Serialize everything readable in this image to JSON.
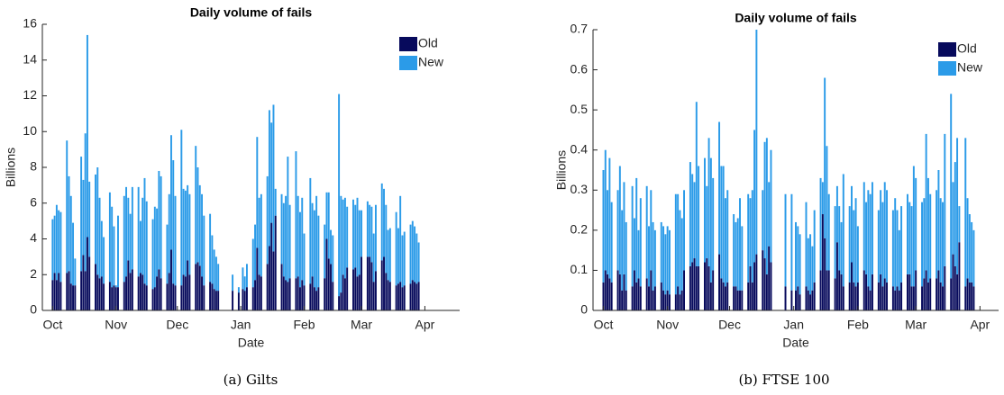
{
  "chart_data": [
    {
      "type": "stacked-bar",
      "title": "Daily volume of fails",
      "x_label": "Date",
      "y_label": "Billions",
      "caption": "(a) Gilts",
      "x": [
        0,
        1,
        2,
        3,
        4,
        7,
        8,
        9,
        10,
        11,
        14,
        15,
        16,
        17,
        18,
        21,
        22,
        23,
        24,
        25,
        28,
        29,
        30,
        31,
        32,
        35,
        36,
        37,
        38,
        39,
        42,
        43,
        44,
        45,
        46,
        49,
        50,
        51,
        52,
        53,
        56,
        57,
        58,
        59,
        60,
        63,
        64,
        65,
        66,
        67,
        70,
        71,
        72,
        73,
        74,
        77,
        78,
        79,
        80,
        81,
        88,
        91,
        93,
        94,
        95,
        98,
        99,
        100,
        101,
        102,
        105,
        106,
        107,
        108,
        109,
        112,
        113,
        114,
        115,
        116,
        119,
        120,
        121,
        122,
        123,
        126,
        127,
        128,
        129,
        130,
        133,
        134,
        135,
        136,
        137,
        140,
        141,
        142,
        143,
        144,
        147,
        148,
        149,
        150,
        151,
        154,
        155,
        156,
        157,
        158,
        161,
        162,
        163,
        164,
        165,
        168,
        169,
        170,
        171,
        172,
        175,
        176,
        177,
        178,
        179
      ],
      "series": [
        {
          "name": "Old",
          "color": "#070a5c",
          "values": [
            1.7,
            2.1,
            1.7,
            2.1,
            1.6,
            2.1,
            2.2,
            1.5,
            1.4,
            1.4,
            2.2,
            3.1,
            2.2,
            4.1,
            3.0,
            2.6,
            2.0,
            1.8,
            1.9,
            1.5,
            1.6,
            1.3,
            1.4,
            1.3,
            1.3,
            1.6,
            1.9,
            2.8,
            2.1,
            2.3,
            1.9,
            2.1,
            2.0,
            1.5,
            1.4,
            1.2,
            1.3,
            1.9,
            2.3,
            1.8,
            1.5,
            2.1,
            3.4,
            1.5,
            1.4,
            1.4,
            2.0,
            1.9,
            2.8,
            2.0,
            2.6,
            2.7,
            2.5,
            1.9,
            1.4,
            1.6,
            1.5,
            1.2,
            1.1,
            1.1,
            1.1,
            1.0,
            1.2,
            1.1,
            1.3,
            1.3,
            1.7,
            3.5,
            2.0,
            1.9,
            2.6,
            3.6,
            4.9,
            3.3,
            5.3,
            2.6,
            1.9,
            1.7,
            1.6,
            1.8,
            1.8,
            1.9,
            1.3,
            1.7,
            1.4,
            1.5,
            1.9,
            1.3,
            1.1,
            1.3,
            1.8,
            4.0,
            2.9,
            2.6,
            1.6,
            0.8,
            1.0,
            2.0,
            1.8,
            2.4,
            2.3,
            2.4,
            1.9,
            2.0,
            3.0,
            3.0,
            3.0,
            2.7,
            1.6,
            2.2,
            2.8,
            3.0,
            2.1,
            1.7,
            1.6,
            1.4,
            1.5,
            1.6,
            1.3,
            1.4,
            1.5,
            1.7,
            1.6,
            1.5,
            1.6
          ]
        },
        {
          "name": "New",
          "color": "#2b9be8",
          "values": [
            3.4,
            3.2,
            4.2,
            3.5,
            3.9,
            7.4,
            5.3,
            4.9,
            3.5,
            1.5,
            6.4,
            4.2,
            7.7,
            11.3,
            4.2,
            5.0,
            6.0,
            4.5,
            3.1,
            2.6,
            5.0,
            4.5,
            3.3,
            0.1,
            4.0,
            4.8,
            5.0,
            3.5,
            3.3,
            4.6,
            5.0,
            2.9,
            4.3,
            5.9,
            4.7,
            3.9,
            4.5,
            3.8,
            5.5,
            5.7,
            3.3,
            4.4,
            6.4,
            6.9,
            5.0,
            8.7,
            4.8,
            4.8,
            4.2,
            4.5,
            6.6,
            5.3,
            4.5,
            4.6,
            3.9,
            3.8,
            2.7,
            2.2,
            1.9,
            1.5,
            0.9,
            0.3,
            1.2,
            0.8,
            1.3,
            2.7,
            3.1,
            6.2,
            4.3,
            4.6,
            4.9,
            7.6,
            5.6,
            8.2,
            1.5,
            3.9,
            4.1,
            4.7,
            7.0,
            4.1,
            7.1,
            4.5,
            4.2,
            4.6,
            2.9,
            5.9,
            4.1,
            4.3,
            5.3,
            4.0,
            3.0,
            2.6,
            3.7,
            1.9,
            2.6,
            11.3,
            5.4,
            4.2,
            4.5,
            3.4,
            3.9,
            3.5,
            4.4,
            3.6,
            2.6,
            3.1,
            2.9,
            3.1,
            2.7,
            3.7,
            4.3,
            3.8,
            3.8,
            2.8,
            3.0,
            4.1,
            3.1,
            4.8,
            2.9,
            3.0,
            3.3,
            3.3,
            3.1,
            2.8,
            2.2
          ]
        }
      ],
      "xlim": [
        -5,
        199
      ],
      "xticks": [
        {
          "value": 0,
          "label": "Oct"
        },
        {
          "value": 31,
          "label": "Nov"
        },
        {
          "value": 61,
          "label": "Dec"
        },
        {
          "value": 92,
          "label": "Jan"
        },
        {
          "value": 123,
          "label": "Feb"
        },
        {
          "value": 151,
          "label": "Mar"
        },
        {
          "value": 182,
          "label": "Apr"
        }
      ],
      "ylim": [
        0,
        16
      ],
      "yticks": [
        0,
        2,
        4,
        6,
        8,
        10,
        12,
        14,
        16
      ],
      "legend": "upper right"
    },
    {
      "type": "stacked-bar",
      "title": "Daily volume of fails",
      "x_label": "Date",
      "y_label": "Billions",
      "caption": "(b) FTSE 100",
      "x": [
        0,
        1,
        2,
        3,
        4,
        7,
        8,
        9,
        10,
        11,
        14,
        15,
        16,
        17,
        18,
        21,
        22,
        23,
        24,
        25,
        28,
        29,
        30,
        31,
        32,
        35,
        36,
        37,
        38,
        39,
        42,
        43,
        44,
        45,
        46,
        49,
        50,
        51,
        52,
        53,
        56,
        57,
        58,
        59,
        60,
        63,
        64,
        65,
        66,
        67,
        70,
        71,
        72,
        73,
        74,
        77,
        78,
        79,
        80,
        81,
        88,
        91,
        93,
        94,
        95,
        98,
        99,
        100,
        101,
        102,
        105,
        106,
        107,
        108,
        109,
        112,
        113,
        114,
        115,
        116,
        119,
        120,
        121,
        122,
        123,
        126,
        127,
        128,
        129,
        130,
        133,
        134,
        135,
        136,
        137,
        140,
        141,
        142,
        143,
        144,
        147,
        148,
        149,
        150,
        151,
        154,
        155,
        156,
        157,
        158,
        161,
        162,
        163,
        164,
        165,
        168,
        169,
        170,
        171,
        172,
        175,
        176,
        177,
        178,
        179
      ],
      "series": [
        {
          "name": "Old",
          "color": "#070a5c",
          "values": [
            0.07,
            0.1,
            0.09,
            0.08,
            0.07,
            0.1,
            0.09,
            0.05,
            0.09,
            0.05,
            0.06,
            0.1,
            0.07,
            0.08,
            0.06,
            0.08,
            0.06,
            0.1,
            0.05,
            0.06,
            0.07,
            0.05,
            0.04,
            0.05,
            0.04,
            0.04,
            0.06,
            0.04,
            0.05,
            0.1,
            0.11,
            0.12,
            0.13,
            0.11,
            0.11,
            0.12,
            0.13,
            0.11,
            0.07,
            0.1,
            0.14,
            0.08,
            0.07,
            0.06,
            0.07,
            0.06,
            0.06,
            0.05,
            0.05,
            0.05,
            0.07,
            0.11,
            0.07,
            0.12,
            0.14,
            0.15,
            0.13,
            0.09,
            0.16,
            0.12,
            0.06,
            0.05,
            0.05,
            0.06,
            0.04,
            0.06,
            0.05,
            0.04,
            0.05,
            0.07,
            0.1,
            0.24,
            0.18,
            0.1,
            0.1,
            0.08,
            0.17,
            0.1,
            0.09,
            0.06,
            0.07,
            0.12,
            0.07,
            0.06,
            0.07,
            0.1,
            0.09,
            0.06,
            0.05,
            0.09,
            0.07,
            0.09,
            0.06,
            0.08,
            0.07,
            0.06,
            0.05,
            0.06,
            0.05,
            0.07,
            0.09,
            0.09,
            0.06,
            0.06,
            0.1,
            0.06,
            0.08,
            0.1,
            0.07,
            0.08,
            0.08,
            0.1,
            0.07,
            0.06,
            0.11,
            0.08,
            0.14,
            0.11,
            0.09,
            0.17,
            0.06,
            0.08,
            0.07,
            0.07,
            0.06
          ]
        },
        {
          "name": "New",
          "color": "#2b9be8",
          "values": [
            0.28,
            0.3,
            0.21,
            0.3,
            0.2,
            0.2,
            0.27,
            0.2,
            0.23,
            0.17,
            0.25,
            0.13,
            0.26,
            0.12,
            0.22,
            0.23,
            0.15,
            0.2,
            0.17,
            0.14,
            0.15,
            0.16,
            0.15,
            0.16,
            0.16,
            0.25,
            0.23,
            0.21,
            0.18,
            0.2,
            0.26,
            0.22,
            0.19,
            0.41,
            0.25,
            0.26,
            0.18,
            0.32,
            0.31,
            0.23,
            0.33,
            0.28,
            0.29,
            0.22,
            0.23,
            0.18,
            0.16,
            0.18,
            0.23,
            0.16,
            0.22,
            0.17,
            0.23,
            0.33,
            0.56,
            0.15,
            0.29,
            0.34,
            0.16,
            0.28,
            0.23,
            0.24,
            0.17,
            0.15,
            0.15,
            0.21,
            0.13,
            0.15,
            0.11,
            0.18,
            0.23,
            0.08,
            0.4,
            0.31,
            0.19,
            0.18,
            0.14,
            0.16,
            0.13,
            0.28,
            0.19,
            0.19,
            0.18,
            0.22,
            0.14,
            0.22,
            0.18,
            0.24,
            0.24,
            0.23,
            0.18,
            0.21,
            0.21,
            0.24,
            0.23,
            0.19,
            0.23,
            0.19,
            0.15,
            0.19,
            0.2,
            0.18,
            0.2,
            0.3,
            0.23,
            0.21,
            0.2,
            0.34,
            0.26,
            0.21,
            0.22,
            0.25,
            0.21,
            0.21,
            0.33,
            0.46,
            0.18,
            0.26,
            0.34,
            0.09,
            0.37,
            0.2,
            0.17,
            0.15,
            0.14
          ]
        }
      ],
      "xlim": [
        -5,
        191
      ],
      "xticks": [
        {
          "value": 0,
          "label": "Oct"
        },
        {
          "value": 31,
          "label": "Nov"
        },
        {
          "value": 61,
          "label": "Dec"
        },
        {
          "value": 92,
          "label": "Jan"
        },
        {
          "value": 123,
          "label": "Feb"
        },
        {
          "value": 151,
          "label": "Mar"
        },
        {
          "value": 182,
          "label": "Apr"
        }
      ],
      "ylim": [
        0,
        0.7
      ],
      "yticks": [
        0,
        0.1,
        0.2,
        0.3,
        0.4,
        0.5,
        0.6,
        0.7
      ],
      "legend": "upper right"
    }
  ]
}
